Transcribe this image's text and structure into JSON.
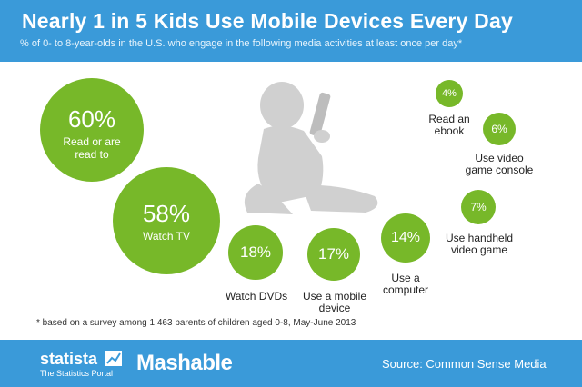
{
  "header": {
    "title": "Nearly 1 in 5 Kids Use Mobile Devices Every Day",
    "subtitle": "% of 0- to 8-year-olds in the U.S. who engage in the following media activities at least once per day*"
  },
  "chart_data": {
    "type": "bubble",
    "title": "Nearly 1 in 5 Kids Use Mobile Devices Every Day",
    "subtitle": "% of 0- to 8-year-olds in the U.S. who engage in the following media activities at least once per day*",
    "unit": "%",
    "items": [
      {
        "label": "Read or are read to",
        "value": 60,
        "value_label": "60%"
      },
      {
        "label": "Watch TV",
        "value": 58,
        "value_label": "58%"
      },
      {
        "label": "Watch DVDs",
        "value": 18,
        "value_label": "18%"
      },
      {
        "label": "Use a mobile device",
        "value": 17,
        "value_label": "17%"
      },
      {
        "label": "Use a computer",
        "value": 14,
        "value_label": "14%"
      },
      {
        "label": "Use handheld video game",
        "value": 7,
        "value_label": "7%"
      },
      {
        "label": "Use video game console",
        "value": 6,
        "value_label": "6%"
      },
      {
        "label": "Read an ebook",
        "value": 4,
        "value_label": "4%"
      }
    ],
    "footnote": "* based on a survey among 1,463 parents of children aged 0-8, May-June 2013",
    "source": "Source: Common Sense Media"
  },
  "labels": {
    "read": [
      "Read or are",
      "read to"
    ],
    "tv": "Watch TV",
    "dvd": "Watch DVDs",
    "mobile": [
      "Use a mobile",
      "device"
    ],
    "computer": [
      "Use a",
      "computer"
    ],
    "handheld": [
      "Use handheld",
      "video game"
    ],
    "console": [
      "Use video",
      "game console"
    ],
    "ebook": [
      "Read an",
      "ebook"
    ]
  },
  "footer": {
    "statista": "statista",
    "statista_tagline": "The Statistics Portal",
    "mashable": "Mashable",
    "source": "Source: Common Sense Media"
  },
  "colors": {
    "header_bg": "#3a9ad9",
    "bubble": "#77b829"
  }
}
